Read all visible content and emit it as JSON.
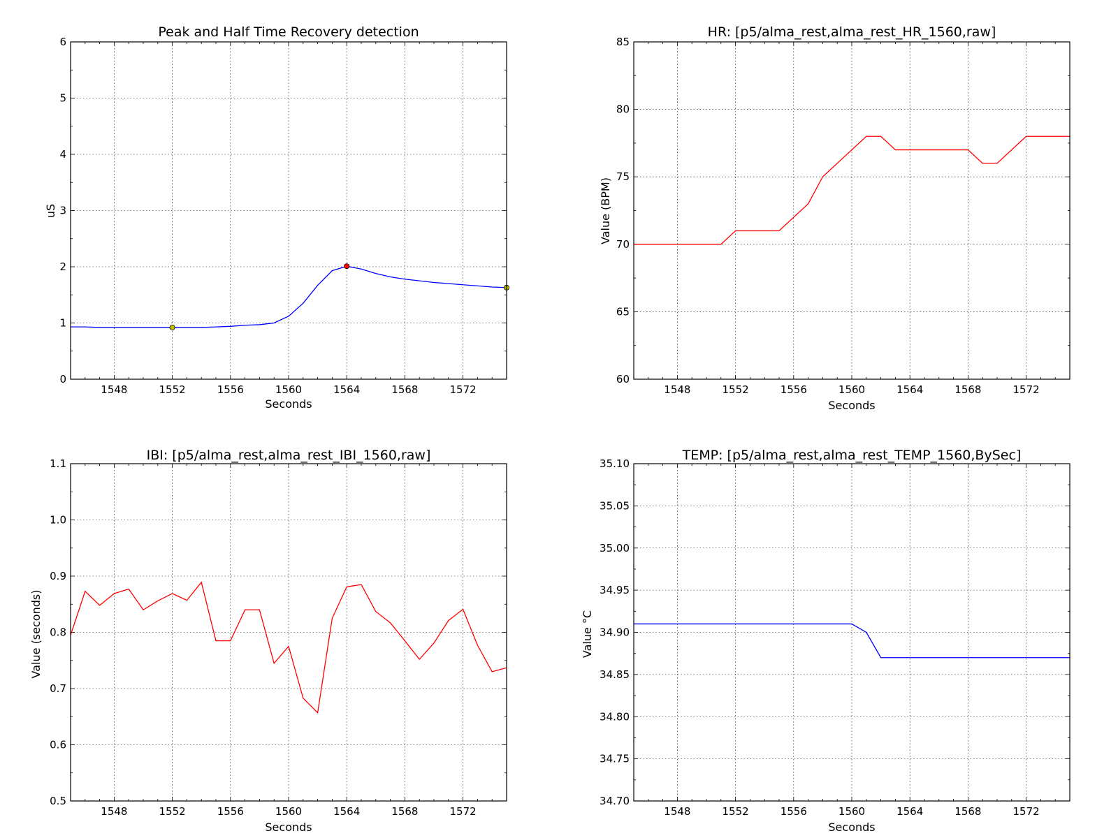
{
  "chart_data": [
    {
      "type": "line",
      "title": "Peak and Half Time Recovery detection",
      "xlabel": "Seconds",
      "ylabel": "uS",
      "xlim": [
        1545,
        1575
      ],
      "ylim": [
        0,
        6
      ],
      "xticks": [
        1548,
        1552,
        1556,
        1560,
        1564,
        1568,
        1572
      ],
      "yticks": [
        0,
        1,
        2,
        3,
        4,
        5,
        6
      ],
      "ytick_labels": [
        "0",
        "1",
        "2",
        "3",
        "4",
        "5",
        "6"
      ],
      "grid": true,
      "series": [
        {
          "color": "#0000ff",
          "x": [
            1545,
            1546,
            1547,
            1548,
            1549,
            1550,
            1551,
            1552,
            1553,
            1554,
            1555,
            1556,
            1557,
            1558,
            1559,
            1560,
            1561,
            1562,
            1563,
            1564,
            1565,
            1566,
            1567,
            1568,
            1569,
            1570,
            1571,
            1572,
            1573,
            1574,
            1575
          ],
          "y": [
            0.93,
            0.93,
            0.92,
            0.92,
            0.92,
            0.92,
            0.92,
            0.92,
            0.92,
            0.92,
            0.93,
            0.94,
            0.96,
            0.97,
            1.0,
            1.12,
            1.35,
            1.67,
            1.93,
            2.01,
            1.96,
            1.88,
            1.82,
            1.78,
            1.75,
            1.72,
            1.7,
            1.68,
            1.66,
            1.64,
            1.63
          ]
        }
      ],
      "markers": [
        {
          "label": "peak",
          "x": 1564,
          "y": 2.01,
          "color": "#ff0000"
        },
        {
          "label": "start",
          "x": 1552,
          "y": 0.92,
          "color": "#bfbf00"
        },
        {
          "label": "half-recovery",
          "x": 1575,
          "y": 1.63,
          "color": "#bfbf00"
        }
      ]
    },
    {
      "type": "line",
      "title": "HR: [p5/alma_rest,alma_rest_HR_1560,raw]",
      "xlabel": "Seconds",
      "ylabel": "Value (BPM)",
      "xlim": [
        1545,
        1575
      ],
      "ylim": [
        60,
        85
      ],
      "xticks": [
        1548,
        1552,
        1556,
        1560,
        1564,
        1568,
        1572
      ],
      "yticks": [
        60,
        65,
        70,
        75,
        80,
        85
      ],
      "ytick_labels": [
        "60",
        "65",
        "70",
        "75",
        "80",
        "85"
      ],
      "grid": true,
      "series": [
        {
          "color": "#ff0000",
          "x": [
            1545,
            1551,
            1552,
            1555,
            1557,
            1558,
            1561,
            1562,
            1563,
            1568,
            1569,
            1570,
            1572,
            1575
          ],
          "y": [
            70,
            70,
            71,
            71,
            73,
            75,
            78,
            78,
            77,
            77,
            76,
            76,
            78,
            78
          ]
        }
      ]
    },
    {
      "type": "line",
      "title": "IBI: [p5/alma_rest,alma_rest_IBI_1560,raw]",
      "xlabel": "Seconds",
      "ylabel": "Value (seconds)",
      "xlim": [
        1545,
        1575
      ],
      "ylim": [
        0.5,
        1.1
      ],
      "xticks": [
        1548,
        1552,
        1556,
        1560,
        1564,
        1568,
        1572
      ],
      "yticks": [
        0.5,
        0.6,
        0.7,
        0.8,
        0.9,
        1.0,
        1.1
      ],
      "ytick_labels": [
        "0.5",
        "0.6",
        "0.7",
        "0.8",
        "0.9",
        "1.0",
        "1.1"
      ],
      "grid": true,
      "series": [
        {
          "color": "#ff0000",
          "x": [
            1545,
            1546,
            1547,
            1548,
            1549,
            1550,
            1551,
            1552,
            1553,
            1554,
            1555,
            1556,
            1557,
            1558,
            1559,
            1560,
            1561,
            1562,
            1563,
            1564,
            1565,
            1566,
            1567,
            1568,
            1569,
            1570,
            1571,
            1572,
            1573,
            1574,
            1575
          ],
          "y": [
            0.795,
            0.873,
            0.848,
            0.869,
            0.877,
            0.84,
            0.856,
            0.869,
            0.857,
            0.889,
            0.785,
            0.785,
            0.84,
            0.84,
            0.745,
            0.775,
            0.683,
            0.657,
            0.825,
            0.881,
            0.885,
            0.837,
            0.817,
            0.785,
            0.752,
            0.781,
            0.821,
            0.841,
            0.777,
            0.73,
            0.737
          ]
        }
      ]
    },
    {
      "type": "line",
      "title": "TEMP: [p5/alma_rest,alma_rest_TEMP_1560,BySec]",
      "xlabel": "Seconds",
      "ylabel": "Value °C",
      "xlim": [
        1545,
        1575
      ],
      "ylim": [
        34.7,
        35.1
      ],
      "xticks": [
        1548,
        1552,
        1556,
        1560,
        1564,
        1568,
        1572
      ],
      "yticks": [
        34.7,
        34.75,
        34.8,
        34.85,
        34.9,
        34.95,
        35.0,
        35.05,
        35.1
      ],
      "ytick_labels": [
        "34.70",
        "34.75",
        "34.80",
        "34.85",
        "34.90",
        "34.95",
        "35.00",
        "35.05",
        "35.10"
      ],
      "grid": true,
      "series": [
        {
          "color": "#0000ff",
          "x": [
            1545,
            1560,
            1561,
            1562,
            1575
          ],
          "y": [
            34.91,
            34.91,
            34.9,
            34.87,
            34.87
          ]
        }
      ]
    }
  ]
}
